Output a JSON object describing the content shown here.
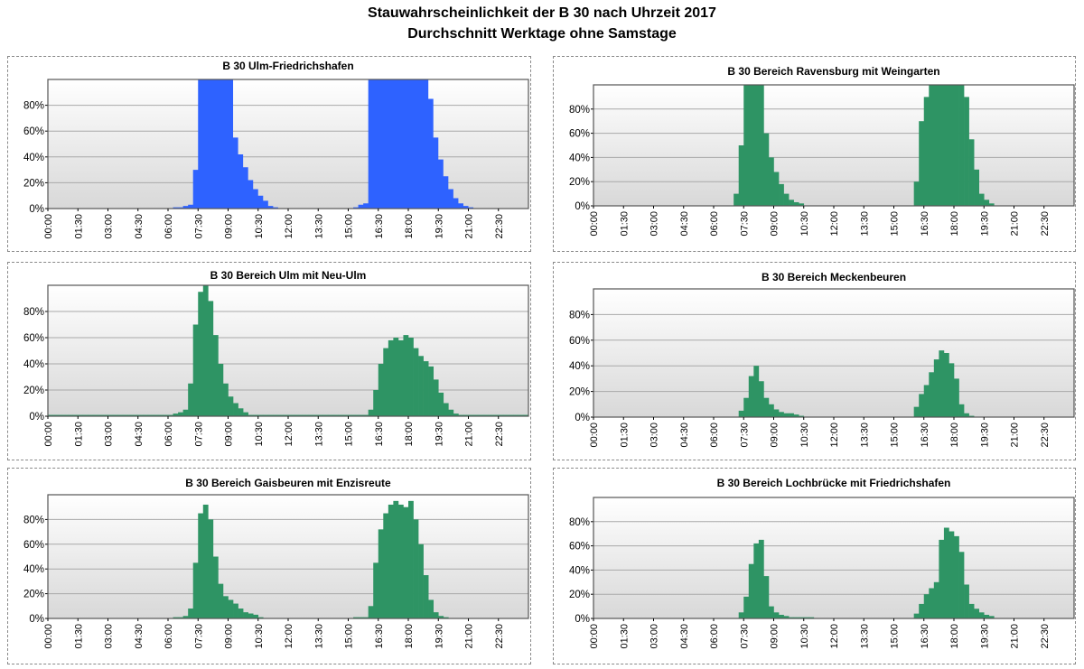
{
  "title": "Stauwahrscheinlichkeit der B 30 nach Uhrzeit 2017",
  "subtitle": "Durchschnitt Werktage ohne Samstage",
  "axis": {
    "x_ticks": [
      "00:00",
      "01:30",
      "03:00",
      "04:30",
      "06:00",
      "07:30",
      "09:00",
      "10:30",
      "12:00",
      "13:30",
      "15:00",
      "16:30",
      "18:00",
      "19:30",
      "21:00",
      "22:30"
    ],
    "y_ticks": [
      "0%",
      "20%",
      "40%",
      "60%",
      "80%"
    ],
    "ylim": [
      0,
      100
    ],
    "unit": "%",
    "interval_minutes": 15
  },
  "colors": {
    "blue": "#2e62ff",
    "green": "#2e9464",
    "plot_top": "#ffffff",
    "plot_bottom": "#d8d8d8",
    "grid": "#a8a8a8"
  },
  "chart_data": [
    {
      "type": "area",
      "title": "B 30 Ulm-Friedrichshafen",
      "color": "blue",
      "grid": true,
      "ylim": [
        0,
        100
      ],
      "x": [
        "00:00",
        "00:15",
        "00:30",
        "00:45",
        "01:00",
        "01:15",
        "01:30",
        "01:45",
        "02:00",
        "02:15",
        "02:30",
        "02:45",
        "03:00",
        "03:15",
        "03:30",
        "03:45",
        "04:00",
        "04:15",
        "04:30",
        "04:45",
        "05:00",
        "05:15",
        "05:30",
        "05:45",
        "06:00",
        "06:15",
        "06:30",
        "06:45",
        "07:00",
        "07:15",
        "07:30",
        "07:45",
        "08:00",
        "08:15",
        "08:30",
        "08:45",
        "09:00",
        "09:15",
        "09:30",
        "09:45",
        "10:00",
        "10:15",
        "10:30",
        "10:45",
        "11:00",
        "11:15",
        "11:30",
        "11:45",
        "12:00",
        "12:15",
        "12:30",
        "12:45",
        "13:00",
        "13:15",
        "13:30",
        "13:45",
        "14:00",
        "14:15",
        "14:30",
        "14:45",
        "15:00",
        "15:15",
        "15:30",
        "15:45",
        "16:00",
        "16:15",
        "16:30",
        "16:45",
        "17:00",
        "17:15",
        "17:30",
        "17:45",
        "18:00",
        "18:15",
        "18:30",
        "18:45",
        "19:00",
        "19:15",
        "19:30",
        "19:45",
        "20:00",
        "20:15",
        "20:30",
        "20:45",
        "21:00",
        "21:15",
        "21:30",
        "21:45",
        "22:00",
        "22:15",
        "22:30",
        "22:45",
        "23:00",
        "23:15",
        "23:30",
        "23:45"
      ],
      "values": [
        0,
        0,
        0,
        0,
        0,
        0,
        0,
        0,
        0,
        0,
        0,
        0,
        0,
        0,
        0,
        0,
        0,
        0,
        0,
        0,
        0,
        0,
        0,
        0,
        0,
        1,
        1,
        2,
        3,
        30,
        100,
        100,
        100,
        100,
        100,
        100,
        100,
        55,
        42,
        32,
        22,
        15,
        10,
        6,
        2,
        1,
        0,
        0,
        0,
        0,
        0,
        0,
        0,
        0,
        0,
        0,
        0,
        0,
        0,
        0,
        0,
        1,
        3,
        4,
        100,
        100,
        100,
        100,
        100,
        100,
        100,
        100,
        100,
        100,
        100,
        100,
        85,
        55,
        38,
        25,
        15,
        8,
        4,
        2,
        1,
        0,
        0,
        0,
        0,
        0,
        0,
        0,
        0,
        0,
        0,
        0
      ]
    },
    {
      "type": "bar",
      "title": "B 30 Bereich Ravensburg mit Weingarten",
      "color": "green",
      "grid": true,
      "ylim": [
        0,
        100
      ],
      "x": [
        "00:00",
        "00:15",
        "00:30",
        "00:45",
        "01:00",
        "01:15",
        "01:30",
        "01:45",
        "02:00",
        "02:15",
        "02:30",
        "02:45",
        "03:00",
        "03:15",
        "03:30",
        "03:45",
        "04:00",
        "04:15",
        "04:30",
        "04:45",
        "05:00",
        "05:15",
        "05:30",
        "05:45",
        "06:00",
        "06:15",
        "06:30",
        "06:45",
        "07:00",
        "07:15",
        "07:30",
        "07:45",
        "08:00",
        "08:15",
        "08:30",
        "08:45",
        "09:00",
        "09:15",
        "09:30",
        "09:45",
        "10:00",
        "10:15",
        "10:30",
        "10:45",
        "11:00",
        "11:15",
        "11:30",
        "11:45",
        "12:00",
        "12:15",
        "12:30",
        "12:45",
        "13:00",
        "13:15",
        "13:30",
        "13:45",
        "14:00",
        "14:15",
        "14:30",
        "14:45",
        "15:00",
        "15:15",
        "15:30",
        "15:45",
        "16:00",
        "16:15",
        "16:30",
        "16:45",
        "17:00",
        "17:15",
        "17:30",
        "17:45",
        "18:00",
        "18:15",
        "18:30",
        "18:45",
        "19:00",
        "19:15",
        "19:30",
        "19:45",
        "20:00",
        "20:15",
        "20:30",
        "20:45",
        "21:00",
        "21:15",
        "21:30",
        "21:45",
        "22:00",
        "22:15",
        "22:30",
        "22:45",
        "23:00",
        "23:15",
        "23:30",
        "23:45"
      ],
      "values": [
        0,
        0,
        0,
        0,
        0,
        0,
        0,
        0,
        0,
        0,
        0,
        0,
        0,
        0,
        0,
        0,
        0,
        0,
        0,
        0,
        0,
        0,
        0,
        0,
        0,
        0,
        0,
        0,
        10,
        50,
        100,
        100,
        100,
        100,
        60,
        40,
        28,
        18,
        10,
        5,
        3,
        2,
        0,
        0,
        0,
        0,
        0,
        0,
        0,
        0,
        0,
        0,
        0,
        0,
        0,
        0,
        0,
        0,
        0,
        0,
        0,
        0,
        0,
        0,
        20,
        70,
        90,
        100,
        100,
        100,
        100,
        100,
        100,
        100,
        90,
        55,
        30,
        10,
        5,
        2,
        0,
        0,
        0,
        0,
        0,
        0,
        0,
        0,
        0,
        0,
        0,
        0,
        0,
        0,
        0,
        0
      ]
    },
    {
      "type": "bar",
      "title": "B 30 Bereich Ulm mit Neu-Ulm",
      "color": "green",
      "grid": true,
      "ylim": [
        0,
        100
      ],
      "x": [
        "00:00",
        "00:15",
        "00:30",
        "00:45",
        "01:00",
        "01:15",
        "01:30",
        "01:45",
        "02:00",
        "02:15",
        "02:30",
        "02:45",
        "03:00",
        "03:15",
        "03:30",
        "03:45",
        "04:00",
        "04:15",
        "04:30",
        "04:45",
        "05:00",
        "05:15",
        "05:30",
        "05:45",
        "06:00",
        "06:15",
        "06:30",
        "06:45",
        "07:00",
        "07:15",
        "07:30",
        "07:45",
        "08:00",
        "08:15",
        "08:30",
        "08:45",
        "09:00",
        "09:15",
        "09:30",
        "09:45",
        "10:00",
        "10:15",
        "10:30",
        "10:45",
        "11:00",
        "11:15",
        "11:30",
        "11:45",
        "12:00",
        "12:15",
        "12:30",
        "12:45",
        "13:00",
        "13:15",
        "13:30",
        "13:45",
        "14:00",
        "14:15",
        "14:30",
        "14:45",
        "15:00",
        "15:15",
        "15:30",
        "15:45",
        "16:00",
        "16:15",
        "16:30",
        "16:45",
        "17:00",
        "17:15",
        "17:30",
        "17:45",
        "18:00",
        "18:15",
        "18:30",
        "18:45",
        "19:00",
        "19:15",
        "19:30",
        "19:45",
        "20:00",
        "20:15",
        "20:30",
        "20:45",
        "21:00",
        "21:15",
        "21:30",
        "21:45",
        "22:00",
        "22:15",
        "22:30",
        "22:45",
        "23:00",
        "23:15",
        "23:30",
        "23:45"
      ],
      "values": [
        1,
        1,
        1,
        1,
        1,
        1,
        1,
        1,
        1,
        1,
        1,
        1,
        1,
        1,
        1,
        1,
        1,
        1,
        1,
        1,
        1,
        1,
        1,
        1,
        1,
        2,
        3,
        5,
        25,
        70,
        95,
        100,
        88,
        62,
        40,
        25,
        15,
        10,
        6,
        3,
        1,
        1,
        1,
        1,
        1,
        1,
        1,
        1,
        1,
        1,
        1,
        1,
        1,
        1,
        1,
        1,
        1,
        1,
        1,
        1,
        1,
        1,
        1,
        1,
        5,
        20,
        40,
        52,
        58,
        60,
        58,
        62,
        60,
        52,
        46,
        42,
        38,
        28,
        18,
        10,
        5,
        2,
        1,
        1,
        1,
        1,
        1,
        1,
        1,
        1,
        1,
        1,
        1,
        1,
        1,
        1
      ]
    },
    {
      "type": "bar",
      "title": "B 30 Bereich Meckenbeuren",
      "color": "green",
      "grid": true,
      "ylim": [
        0,
        100
      ],
      "x": [
        "00:00",
        "00:15",
        "00:30",
        "00:45",
        "01:00",
        "01:15",
        "01:30",
        "01:45",
        "02:00",
        "02:15",
        "02:30",
        "02:45",
        "03:00",
        "03:15",
        "03:30",
        "03:45",
        "04:00",
        "04:15",
        "04:30",
        "04:45",
        "05:00",
        "05:15",
        "05:30",
        "05:45",
        "06:00",
        "06:15",
        "06:30",
        "06:45",
        "07:00",
        "07:15",
        "07:30",
        "07:45",
        "08:00",
        "08:15",
        "08:30",
        "08:45",
        "09:00",
        "09:15",
        "09:30",
        "09:45",
        "10:00",
        "10:15",
        "10:30",
        "10:45",
        "11:00",
        "11:15",
        "11:30",
        "11:45",
        "12:00",
        "12:15",
        "12:30",
        "12:45",
        "13:00",
        "13:15",
        "13:30",
        "13:45",
        "14:00",
        "14:15",
        "14:30",
        "14:45",
        "15:00",
        "15:15",
        "15:30",
        "15:45",
        "16:00",
        "16:15",
        "16:30",
        "16:45",
        "17:00",
        "17:15",
        "17:30",
        "17:45",
        "18:00",
        "18:15",
        "18:30",
        "18:45",
        "19:00",
        "19:15",
        "19:30",
        "19:45",
        "20:00",
        "20:15",
        "20:30",
        "20:45",
        "21:00",
        "21:15",
        "21:30",
        "21:45",
        "22:00",
        "22:15",
        "22:30",
        "22:45",
        "23:00",
        "23:15",
        "23:30",
        "23:45"
      ],
      "values": [
        0,
        0,
        0,
        0,
        0,
        0,
        0,
        0,
        0,
        0,
        0,
        0,
        0,
        0,
        0,
        0,
        0,
        0,
        0,
        0,
        0,
        0,
        0,
        0,
        0,
        0,
        0,
        0,
        0,
        5,
        15,
        32,
        40,
        28,
        15,
        10,
        6,
        4,
        3,
        3,
        2,
        1,
        0,
        0,
        0,
        0,
        0,
        0,
        0,
        0,
        0,
        0,
        0,
        0,
        0,
        0,
        0,
        0,
        0,
        0,
        0,
        0,
        0,
        0,
        8,
        18,
        25,
        35,
        45,
        52,
        50,
        42,
        30,
        10,
        3,
        1,
        0,
        0,
        0,
        0,
        0,
        0,
        0,
        0,
        0,
        0,
        0,
        0,
        0,
        0,
        0,
        0,
        0,
        0,
        0,
        0
      ]
    },
    {
      "type": "bar",
      "title": "B 30 Bereich Gaisbeuren mit Enzisreute",
      "color": "green",
      "grid": true,
      "ylim": [
        0,
        100
      ],
      "x": [
        "00:00",
        "00:15",
        "00:30",
        "00:45",
        "01:00",
        "01:15",
        "01:30",
        "01:45",
        "02:00",
        "02:15",
        "02:30",
        "02:45",
        "03:00",
        "03:15",
        "03:30",
        "03:45",
        "04:00",
        "04:15",
        "04:30",
        "04:45",
        "05:00",
        "05:15",
        "05:30",
        "05:45",
        "06:00",
        "06:15",
        "06:30",
        "06:45",
        "07:00",
        "07:15",
        "07:30",
        "07:45",
        "08:00",
        "08:15",
        "08:30",
        "08:45",
        "09:00",
        "09:15",
        "09:30",
        "09:45",
        "10:00",
        "10:15",
        "10:30",
        "10:45",
        "11:00",
        "11:15",
        "11:30",
        "11:45",
        "12:00",
        "12:15",
        "12:30",
        "12:45",
        "13:00",
        "13:15",
        "13:30",
        "13:45",
        "14:00",
        "14:15",
        "14:30",
        "14:45",
        "15:00",
        "15:15",
        "15:30",
        "15:45",
        "16:00",
        "16:15",
        "16:30",
        "16:45",
        "17:00",
        "17:15",
        "17:30",
        "17:45",
        "18:00",
        "18:15",
        "18:30",
        "18:45",
        "19:00",
        "19:15",
        "19:30",
        "19:45",
        "20:00",
        "20:15",
        "20:30",
        "20:45",
        "21:00",
        "21:15",
        "21:30",
        "21:45",
        "22:00",
        "22:15",
        "22:30",
        "22:45",
        "23:00",
        "23:15",
        "23:30",
        "23:45"
      ],
      "values": [
        0,
        0,
        0,
        0,
        0,
        0,
        0,
        0,
        0,
        0,
        0,
        0,
        0,
        0,
        0,
        0,
        0,
        0,
        0,
        0,
        0,
        0,
        0,
        0,
        0,
        1,
        1,
        2,
        8,
        45,
        85,
        92,
        80,
        50,
        28,
        18,
        15,
        12,
        8,
        5,
        4,
        3,
        1,
        0,
        0,
        0,
        0,
        0,
        0,
        0,
        0,
        0,
        0,
        0,
        0,
        0,
        0,
        0,
        0,
        0,
        0,
        1,
        1,
        1,
        10,
        45,
        72,
        85,
        92,
        95,
        92,
        90,
        95,
        80,
        60,
        35,
        15,
        5,
        2,
        1,
        0,
        0,
        0,
        0,
        0,
        0,
        0,
        0,
        0,
        0,
        0,
        0,
        0,
        0,
        0,
        0
      ]
    },
    {
      "type": "bar",
      "title": "B 30 Bereich Lochbrücke mit Friedrichshafen",
      "color": "green",
      "grid": true,
      "ylim": [
        0,
        100
      ],
      "x": [
        "00:00",
        "00:15",
        "00:30",
        "00:45",
        "01:00",
        "01:15",
        "01:30",
        "01:45",
        "02:00",
        "02:15",
        "02:30",
        "02:45",
        "03:00",
        "03:15",
        "03:30",
        "03:45",
        "04:00",
        "04:15",
        "04:30",
        "04:45",
        "05:00",
        "05:15",
        "05:30",
        "05:45",
        "06:00",
        "06:15",
        "06:30",
        "06:45",
        "07:00",
        "07:15",
        "07:30",
        "07:45",
        "08:00",
        "08:15",
        "08:30",
        "08:45",
        "09:00",
        "09:15",
        "09:30",
        "09:45",
        "10:00",
        "10:15",
        "10:30",
        "10:45",
        "11:00",
        "11:15",
        "11:30",
        "11:45",
        "12:00",
        "12:15",
        "12:30",
        "12:45",
        "13:00",
        "13:15",
        "13:30",
        "13:45",
        "14:00",
        "14:15",
        "14:30",
        "14:45",
        "15:00",
        "15:15",
        "15:30",
        "15:45",
        "16:00",
        "16:15",
        "16:30",
        "16:45",
        "17:00",
        "17:15",
        "17:30",
        "17:45",
        "18:00",
        "18:15",
        "18:30",
        "18:45",
        "19:00",
        "19:15",
        "19:30",
        "19:45",
        "20:00",
        "20:15",
        "20:30",
        "20:45",
        "21:00",
        "21:15",
        "21:30",
        "21:45",
        "22:00",
        "22:15",
        "22:30",
        "22:45",
        "23:00",
        "23:15",
        "23:30",
        "23:45"
      ],
      "values": [
        0,
        0,
        0,
        0,
        0,
        0,
        0,
        0,
        0,
        0,
        0,
        0,
        0,
        0,
        0,
        0,
        0,
        0,
        0,
        0,
        0,
        0,
        0,
        0,
        0,
        0,
        0,
        0,
        0,
        5,
        18,
        45,
        62,
        65,
        35,
        10,
        5,
        3,
        2,
        1,
        1,
        1,
        1,
        1,
        0,
        0,
        0,
        0,
        0,
        0,
        0,
        0,
        0,
        0,
        0,
        0,
        0,
        0,
        0,
        0,
        0,
        0,
        0,
        0,
        4,
        12,
        20,
        25,
        30,
        65,
        75,
        72,
        68,
        55,
        28,
        12,
        8,
        5,
        3,
        2,
        0,
        0,
        0,
        0,
        0,
        0,
        0,
        0,
        0,
        0,
        0,
        0,
        0,
        0,
        0,
        0
      ]
    }
  ]
}
